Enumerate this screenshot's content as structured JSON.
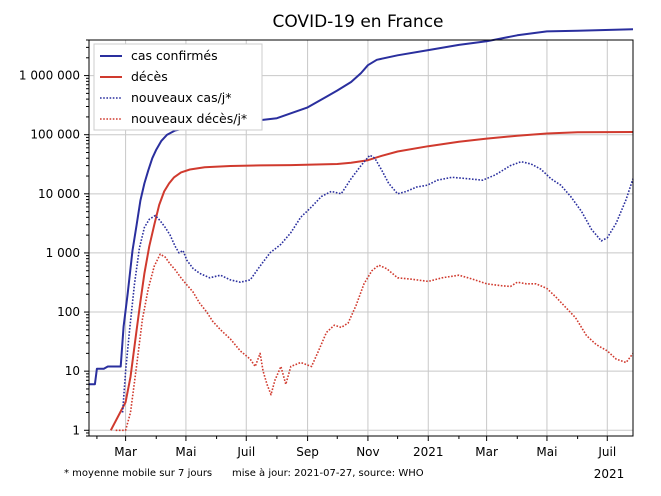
{
  "chart_data": {
    "type": "line",
    "title": "COVID-19 en France",
    "y_scale": "log",
    "ylim": [
      0.8,
      4000000
    ],
    "x_range": [
      "2020-01-24",
      "2021-07-27"
    ],
    "x_ticks": [
      {
        "date": "2020-03-01",
        "label": "Mar"
      },
      {
        "date": "2020-05-01",
        "label": "Mai"
      },
      {
        "date": "2020-07-01",
        "label": "Juil"
      },
      {
        "date": "2020-09-01",
        "label": "Sep"
      },
      {
        "date": "2020-11-01",
        "label": "Nov"
      },
      {
        "date": "2021-01-01",
        "label": "2021"
      },
      {
        "date": "2021-03-01",
        "label": "Mar"
      },
      {
        "date": "2021-05-01",
        "label": "Mai"
      },
      {
        "date": "2021-07-01",
        "label": "Juil"
      }
    ],
    "x_minor_ticks": [
      "2020-02-01",
      "2020-04-01",
      "2020-06-01",
      "2020-08-01",
      "2020-10-01",
      "2020-12-01",
      "2021-02-01",
      "2021-04-01",
      "2021-06-01"
    ],
    "x_corner_label": "2021",
    "y_ticks": [
      {
        "value": 1,
        "label": "1"
      },
      {
        "value": 10,
        "label": "10"
      },
      {
        "value": 100,
        "label": "100"
      },
      {
        "value": 1000,
        "label": "1 000"
      },
      {
        "value": 10000,
        "label": "10 000"
      },
      {
        "value": 100000,
        "label": "100 000"
      },
      {
        "value": 1000000,
        "label": "1 000 000"
      }
    ],
    "grid": true,
    "legend_position": "top-left",
    "series": [
      {
        "name": "cas confirmés",
        "color": "#2a2f9e",
        "style": "solid",
        "points": [
          [
            "2020-01-24",
            6
          ],
          [
            "2020-01-30",
            6
          ],
          [
            "2020-02-01",
            11
          ],
          [
            "2020-02-08",
            11
          ],
          [
            "2020-02-12",
            12
          ],
          [
            "2020-02-25",
            12
          ],
          [
            "2020-02-28",
            57
          ],
          [
            "2020-03-03",
            200
          ],
          [
            "2020-03-08",
            1100
          ],
          [
            "2020-03-12",
            2900
          ],
          [
            "2020-03-16",
            7700
          ],
          [
            "2020-03-20",
            15000
          ],
          [
            "2020-03-24",
            25000
          ],
          [
            "2020-03-28",
            40000
          ],
          [
            "2020-04-01",
            56000
          ],
          [
            "2020-04-06",
            78000
          ],
          [
            "2020-04-12",
            100000
          ],
          [
            "2020-04-20",
            118000
          ],
          [
            "2020-05-01",
            130000
          ],
          [
            "2020-05-15",
            140000
          ],
          [
            "2020-06-01",
            150000
          ],
          [
            "2020-07-01",
            165000
          ],
          [
            "2020-08-01",
            190000
          ],
          [
            "2020-08-15",
            230000
          ],
          [
            "2020-09-01",
            290000
          ],
          [
            "2020-09-20",
            440000
          ],
          [
            "2020-10-01",
            560000
          ],
          [
            "2020-10-15",
            780000
          ],
          [
            "2020-10-25",
            1100000
          ],
          [
            "2020-11-01",
            1500000
          ],
          [
            "2020-11-10",
            1850000
          ],
          [
            "2020-12-01",
            2200000
          ],
          [
            "2021-01-01",
            2700000
          ],
          [
            "2021-02-01",
            3300000
          ],
          [
            "2021-03-01",
            3800000
          ],
          [
            "2021-04-01",
            4800000
          ],
          [
            "2021-05-01",
            5600000
          ],
          [
            "2021-06-01",
            5750000
          ],
          [
            "2021-07-27",
            6100000
          ]
        ]
      },
      {
        "name": "décès",
        "color": "#d03a2e",
        "style": "solid",
        "points": [
          [
            "2020-02-15",
            1
          ],
          [
            "2020-03-01",
            3
          ],
          [
            "2020-03-06",
            8
          ],
          [
            "2020-03-12",
            48
          ],
          [
            "2020-03-16",
            150
          ],
          [
            "2020-03-20",
            450
          ],
          [
            "2020-03-25",
            1300
          ],
          [
            "2020-03-30",
            3000
          ],
          [
            "2020-04-04",
            6500
          ],
          [
            "2020-04-09",
            11000
          ],
          [
            "2020-04-14",
            15000
          ],
          [
            "2020-04-19",
            19000
          ],
          [
            "2020-04-26",
            23000
          ],
          [
            "2020-05-05",
            25800
          ],
          [
            "2020-05-20",
            28200
          ],
          [
            "2020-06-15",
            29500
          ],
          [
            "2020-07-15",
            30200
          ],
          [
            "2020-08-15",
            30600
          ],
          [
            "2020-09-15",
            31400
          ],
          [
            "2020-10-01",
            32000
          ],
          [
            "2020-10-15",
            33500
          ],
          [
            "2020-11-01",
            37000
          ],
          [
            "2020-11-15",
            44000
          ],
          [
            "2020-12-01",
            52000
          ],
          [
            "2021-01-01",
            64000
          ],
          [
            "2021-02-01",
            76000
          ],
          [
            "2021-03-01",
            86000
          ],
          [
            "2021-04-01",
            96000
          ],
          [
            "2021-05-01",
            105000
          ],
          [
            "2021-06-01",
            110000
          ],
          [
            "2021-07-27",
            111000
          ]
        ]
      },
      {
        "name": "nouveaux cas/j*",
        "color": "#2a2f9e",
        "style": "dotted",
        "points": [
          [
            "2020-02-27",
            2
          ],
          [
            "2020-03-01",
            10
          ],
          [
            "2020-03-05",
            50
          ],
          [
            "2020-03-10",
            300
          ],
          [
            "2020-03-15",
            1200
          ],
          [
            "2020-03-20",
            2700
          ],
          [
            "2020-03-25",
            3700
          ],
          [
            "2020-03-31",
            4300
          ],
          [
            "2020-04-05",
            3500
          ],
          [
            "2020-04-10",
            2700
          ],
          [
            "2020-04-15",
            2000
          ],
          [
            "2020-04-20",
            1300
          ],
          [
            "2020-04-24",
            1000
          ],
          [
            "2020-04-28",
            1100
          ],
          [
            "2020-05-02",
            750
          ],
          [
            "2020-05-08",
            550
          ],
          [
            "2020-05-15",
            450
          ],
          [
            "2020-05-25",
            380
          ],
          [
            "2020-06-05",
            420
          ],
          [
            "2020-06-15",
            350
          ],
          [
            "2020-06-25",
            320
          ],
          [
            "2020-07-05",
            350
          ],
          [
            "2020-07-15",
            600
          ],
          [
            "2020-07-25",
            1000
          ],
          [
            "2020-08-05",
            1400
          ],
          [
            "2020-08-15",
            2200
          ],
          [
            "2020-08-25",
            4000
          ],
          [
            "2020-09-05",
            6000
          ],
          [
            "2020-09-15",
            9000
          ],
          [
            "2020-09-25",
            11000
          ],
          [
            "2020-10-05",
            10000
          ],
          [
            "2020-10-15",
            18000
          ],
          [
            "2020-10-25",
            30000
          ],
          [
            "2020-11-03",
            45000
          ],
          [
            "2020-11-08",
            40000
          ],
          [
            "2020-11-15",
            25000
          ],
          [
            "2020-11-22",
            15000
          ],
          [
            "2020-12-01",
            10000
          ],
          [
            "2020-12-10",
            11000
          ],
          [
            "2020-12-20",
            13000
          ],
          [
            "2020-12-31",
            14000
          ],
          [
            "2021-01-10",
            17000
          ],
          [
            "2021-01-25",
            19000
          ],
          [
            "2021-02-10",
            18000
          ],
          [
            "2021-02-25",
            17000
          ],
          [
            "2021-03-10",
            21000
          ],
          [
            "2021-03-25",
            30000
          ],
          [
            "2021-04-05",
            35000
          ],
          [
            "2021-04-15",
            32000
          ],
          [
            "2021-04-25",
            26000
          ],
          [
            "2021-05-05",
            18000
          ],
          [
            "2021-05-15",
            14000
          ],
          [
            "2021-05-25",
            9000
          ],
          [
            "2021-06-05",
            5000
          ],
          [
            "2021-06-15",
            2500
          ],
          [
            "2021-06-25",
            1600
          ],
          [
            "2021-07-01",
            1800
          ],
          [
            "2021-07-10",
            3200
          ],
          [
            "2021-07-20",
            8000
          ],
          [
            "2021-07-27",
            18000
          ]
        ]
      },
      {
        "name": "nouveaux décès/j*",
        "color": "#d03a2e",
        "style": "dotted",
        "points": [
          [
            "2020-02-20",
            1
          ],
          [
            "2020-03-01",
            1
          ],
          [
            "2020-03-06",
            2
          ],
          [
            "2020-03-12",
            12
          ],
          [
            "2020-03-18",
            75
          ],
          [
            "2020-03-24",
            250
          ],
          [
            "2020-03-30",
            600
          ],
          [
            "2020-04-05",
            950
          ],
          [
            "2020-04-10",
            850
          ],
          [
            "2020-04-15",
            650
          ],
          [
            "2020-04-20",
            520
          ],
          [
            "2020-04-25",
            400
          ],
          [
            "2020-05-01",
            300
          ],
          [
            "2020-05-08",
            220
          ],
          [
            "2020-05-15",
            140
          ],
          [
            "2020-05-22",
            100
          ],
          [
            "2020-05-28",
            70
          ],
          [
            "2020-06-05",
            50
          ],
          [
            "2020-06-15",
            35
          ],
          [
            "2020-06-25",
            22
          ],
          [
            "2020-07-05",
            16
          ],
          [
            "2020-07-10",
            12
          ],
          [
            "2020-07-15",
            20
          ],
          [
            "2020-07-18",
            10
          ],
          [
            "2020-07-22",
            6
          ],
          [
            "2020-07-26",
            4
          ],
          [
            "2020-07-30",
            7
          ],
          [
            "2020-08-05",
            12
          ],
          [
            "2020-08-10",
            6
          ],
          [
            "2020-08-15",
            12
          ],
          [
            "2020-08-25",
            14
          ],
          [
            "2020-09-05",
            12
          ],
          [
            "2020-09-12",
            22
          ],
          [
            "2020-09-20",
            45
          ],
          [
            "2020-09-28",
            60
          ],
          [
            "2020-10-05",
            55
          ],
          [
            "2020-10-12",
            65
          ],
          [
            "2020-10-20",
            130
          ],
          [
            "2020-10-28",
            300
          ],
          [
            "2020-11-05",
            500
          ],
          [
            "2020-11-12",
            620
          ],
          [
            "2020-11-20",
            540
          ],
          [
            "2020-12-01",
            380
          ],
          [
            "2020-12-15",
            360
          ],
          [
            "2021-01-01",
            330
          ],
          [
            "2021-01-15",
            380
          ],
          [
            "2021-02-01",
            420
          ],
          [
            "2021-02-15",
            360
          ],
          [
            "2021-03-01",
            300
          ],
          [
            "2021-03-15",
            280
          ],
          [
            "2021-03-25",
            270
          ],
          [
            "2021-04-01",
            320
          ],
          [
            "2021-04-10",
            300
          ],
          [
            "2021-04-20",
            300
          ],
          [
            "2021-05-01",
            250
          ],
          [
            "2021-05-10",
            180
          ],
          [
            "2021-05-20",
            120
          ],
          [
            "2021-05-30",
            80
          ],
          [
            "2021-06-10",
            40
          ],
          [
            "2021-06-20",
            28
          ],
          [
            "2021-07-01",
            22
          ],
          [
            "2021-07-10",
            16
          ],
          [
            "2021-07-20",
            14
          ],
          [
            "2021-07-27",
            20
          ]
        ]
      }
    ],
    "footnote": "* moyenne mobile sur 7 jours",
    "update_note": "mise à jour: 2021-07-27, source: WHO"
  }
}
